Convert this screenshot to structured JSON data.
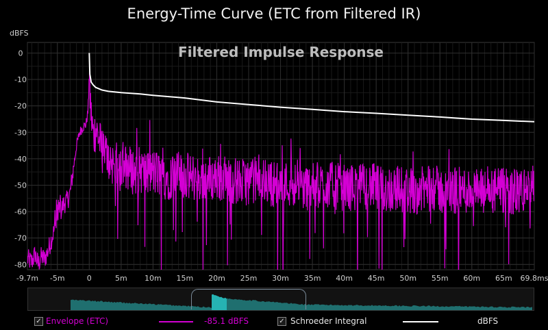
{
  "title": "Energy-Time Curve (ETC from Filtered IR)",
  "colors": {
    "envelope": "#d400d4",
    "schroeder": "#ffffff",
    "grid": "#2e2e2e",
    "overview_fill": "#1f6f6f",
    "overview_highlight": "#26b3b3"
  },
  "chart_data": {
    "type": "line",
    "title": "Energy-Time Curve (ETC from Filtered IR)",
    "annotation": "Filtered Impulse Response",
    "xlabel": "",
    "ylabel": "dBFS",
    "xlim": [
      -9.7,
      69.8
    ],
    "ylim": [
      -82,
      4
    ],
    "grid": true,
    "x_tick_labels": [
      "-9.7m",
      "-5m",
      "0",
      "5m",
      "10m",
      "15m",
      "20m",
      "25m",
      "30m",
      "35m",
      "40m",
      "45m",
      "50m",
      "55m",
      "60m",
      "65m",
      "69.8ms"
    ],
    "x_tick_values": [
      -9.7,
      -5,
      0,
      5,
      10,
      15,
      20,
      25,
      30,
      35,
      40,
      45,
      50,
      55,
      60,
      65,
      69.8
    ],
    "y_tick_labels": [
      "0",
      "-10",
      "-20",
      "-30",
      "-40",
      "-50",
      "-60",
      "-70",
      "-80"
    ],
    "y_tick_values": [
      0,
      -10,
      -20,
      -30,
      -40,
      -50,
      -60,
      -70,
      -80
    ],
    "series": [
      {
        "name": "Schroeder Integral",
        "x": [
          0,
          0.1,
          0.3,
          0.6,
          1,
          2,
          3,
          5,
          8,
          10,
          15,
          20,
          25,
          30,
          35,
          40,
          45,
          50,
          55,
          60,
          65,
          69.8
        ],
        "y": [
          0,
          -8,
          -11,
          -12,
          -13,
          -14,
          -14.5,
          -15,
          -15.5,
          -16,
          -17,
          -18.5,
          -19.5,
          -20.5,
          -21.3,
          -22.2,
          -22.8,
          -23.5,
          -24.2,
          -25,
          -25.5,
          -26
        ]
      },
      {
        "name": "Envelope (ETC)",
        "x": [
          -9.7,
          -9,
          -8.5,
          -8,
          -7.5,
          -7,
          -6.5,
          -6,
          -5.5,
          -5,
          -4.5,
          -4,
          -3.5,
          -3,
          -2.5,
          -2,
          -1.5,
          -1,
          -0.5,
          -0.2,
          0,
          0.3,
          0.7,
          1,
          2,
          3,
          4,
          5,
          6,
          7,
          8,
          9,
          10,
          12,
          14,
          16,
          18,
          20,
          22,
          24,
          26,
          28,
          30,
          32,
          34,
          36,
          38,
          40,
          42,
          44,
          46,
          48,
          50,
          52,
          54,
          56,
          58,
          60,
          62,
          64,
          66,
          68,
          69.8
        ],
        "y": [
          -78,
          -79,
          -76,
          -80,
          -77,
          -78,
          -75,
          -71,
          -67,
          -63,
          -60,
          -57,
          -56,
          -53,
          -44,
          -35,
          -30,
          -28,
          -27,
          -22,
          -10,
          -24,
          -32,
          -28,
          -37,
          -40,
          -42,
          -44,
          -43,
          -45,
          -44,
          -46,
          -45,
          -47,
          -46,
          -47,
          -48,
          -47,
          -48,
          -49,
          -48,
          -49,
          -50,
          -49,
          -51,
          -50,
          -50,
          -51,
          -51,
          -50,
          -52,
          -51,
          -52,
          -52,
          -51,
          -53,
          -52,
          -52,
          -53,
          -52,
          -53,
          -52,
          -51
        ]
      }
    ]
  },
  "legend": {
    "envelope_label": "Envelope (ETC)",
    "envelope_value": "-85.1 dBFS",
    "schroeder_label": "Schroeder Integral",
    "schroeder_value": "dBFS",
    "checkmark": "✓"
  }
}
